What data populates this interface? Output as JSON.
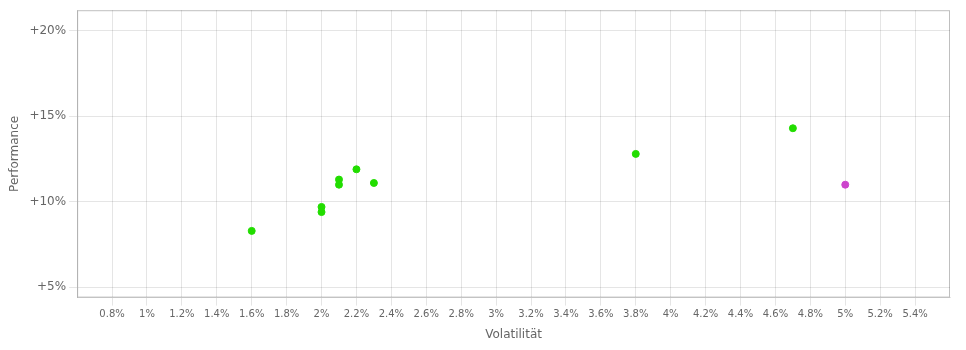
{
  "chart_data": {
    "type": "scatter",
    "x_label": "Volatilität",
    "y_label": "Performance",
    "xlim": [
      0.006,
      0.056
    ],
    "ylim": [
      0.044,
      0.212
    ],
    "xticks": [
      {
        "value": 0.008,
        "label": "0.8%"
      },
      {
        "value": 0.01,
        "label": "1%"
      },
      {
        "value": 0.012,
        "label": "1.2%"
      },
      {
        "value": 0.014,
        "label": "1.4%"
      },
      {
        "value": 0.016,
        "label": "1.6%"
      },
      {
        "value": 0.018,
        "label": "1.8%"
      },
      {
        "value": 0.02,
        "label": "2%"
      },
      {
        "value": 0.022,
        "label": "2.2%"
      },
      {
        "value": 0.024,
        "label": "2.4%"
      },
      {
        "value": 0.026,
        "label": "2.6%"
      },
      {
        "value": 0.028,
        "label": "2.8%"
      },
      {
        "value": 0.03,
        "label": "3%"
      },
      {
        "value": 0.032,
        "label": "3.2%"
      },
      {
        "value": 0.034,
        "label": "3.4%"
      },
      {
        "value": 0.036,
        "label": "3.6%"
      },
      {
        "value": 0.038,
        "label": "3.8%"
      },
      {
        "value": 0.04,
        "label": "4%"
      },
      {
        "value": 0.042,
        "label": "4.2%"
      },
      {
        "value": 0.044,
        "label": "4.4%"
      },
      {
        "value": 0.046,
        "label": "4.6%"
      },
      {
        "value": 0.048,
        "label": "4.8%"
      },
      {
        "value": 0.05,
        "label": "5%"
      },
      {
        "value": 0.052,
        "label": "5.2%"
      },
      {
        "value": 0.054,
        "label": "5.4%"
      }
    ],
    "yticks": [
      {
        "value": 0.05,
        "label": "+5%"
      },
      {
        "value": 0.1,
        "label": "+10%"
      },
      {
        "value": 0.15,
        "label": "+15%"
      },
      {
        "value": 0.2,
        "label": "+20%"
      }
    ],
    "grid": true,
    "series": [
      {
        "color": "#22dd00",
        "x": [
          0.016,
          0.02,
          0.02,
          0.021,
          0.021,
          0.022,
          0.023,
          0.038,
          0.047
        ],
        "values": [
          0.083,
          0.097,
          0.094,
          0.113,
          0.11,
          0.119,
          0.111,
          0.128,
          0.143
        ]
      },
      {
        "color": "#cc44cc",
        "x": [
          0.05
        ],
        "values": [
          0.11
        ]
      }
    ]
  }
}
